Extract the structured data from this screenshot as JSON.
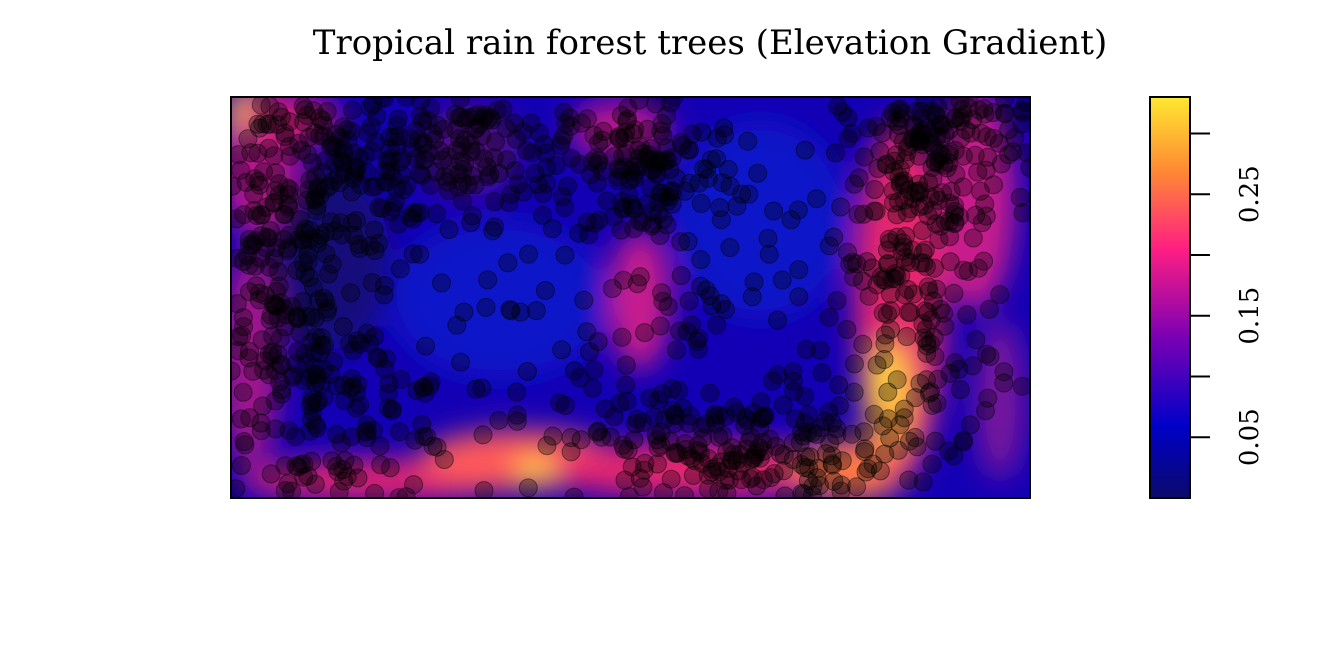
{
  "chart_data": {
    "type": "heatmap",
    "title": "Tropical rain forest trees (Elevation Gradient)",
    "xlabel": "",
    "ylabel": "",
    "colorbar": {
      "range": [
        0.0,
        0.33
      ],
      "tick_values": [
        0.05,
        0.1,
        0.15,
        0.2,
        0.25,
        0.3
      ],
      "tick_labels": [
        "0.05",
        "",
        "0.15",
        "",
        "0.25",
        ""
      ],
      "colors": [
        "#0a0a6b",
        "#0000c8",
        "#7a00b4",
        "#ff1e82",
        "#ff8c32",
        "#ffe832"
      ]
    },
    "heatmap_description": "Elevation gradient surface over rectangular window; high values along bottom strip, right-center band and left edge; low values (blue) in central/upper regions",
    "points": {
      "description": "Tree locations overlaid as semi-transparent black circles",
      "color": "#000000",
      "opacity": 0.3,
      "approx_count": 1400,
      "clusters": [
        {
          "region": "upper-left",
          "cx": 0.12,
          "cy": 0.82,
          "sx": 0.08,
          "sy": 0.14,
          "n": 180
        },
        {
          "region": "upper-left-center",
          "cx": 0.3,
          "cy": 0.88,
          "sx": 0.07,
          "sy": 0.08,
          "n": 120
        },
        {
          "region": "left-middle",
          "cx": 0.06,
          "cy": 0.45,
          "sx": 0.05,
          "sy": 0.25,
          "n": 170
        },
        {
          "region": "left-bottom",
          "cx": 0.15,
          "cy": 0.22,
          "sx": 0.07,
          "sy": 0.12,
          "n": 110
        },
        {
          "region": "top-center",
          "cx": 0.52,
          "cy": 0.82,
          "sx": 0.06,
          "sy": 0.1,
          "n": 120
        },
        {
          "region": "bottom-center",
          "cx": 0.62,
          "cy": 0.12,
          "sx": 0.1,
          "sy": 0.08,
          "n": 200
        },
        {
          "region": "right-band",
          "cx": 0.86,
          "cy": 0.6,
          "sx": 0.05,
          "sy": 0.3,
          "n": 230
        },
        {
          "region": "top-right",
          "cx": 0.9,
          "cy": 0.88,
          "sx": 0.06,
          "sy": 0.08,
          "n": 110
        },
        {
          "region": "sparse-center",
          "cx": 0.55,
          "cy": 0.5,
          "sx": 0.2,
          "sy": 0.25,
          "n": 160
        }
      ]
    },
    "grid": false,
    "legend": "colorbar-right"
  }
}
